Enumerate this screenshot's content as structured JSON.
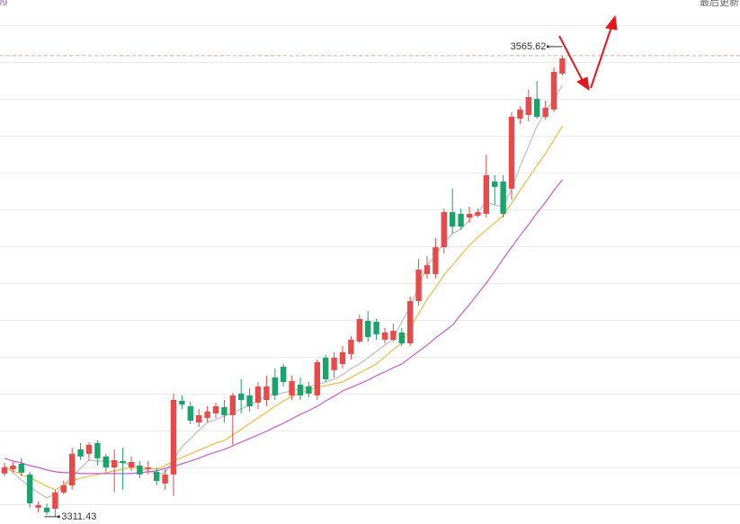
{
  "header": {
    "left": "09",
    "right": "最后更新"
  },
  "chart_data": {
    "type": "candlestick",
    "ylim": [
      3307.4,
      3596.3
    ],
    "up_color": "#e84a4a",
    "down_color": "#1aa36a",
    "open": [
      3335.2,
      3337.6,
      3340.6,
      3334.7,
      3316.4,
      3316.4,
      3315.8,
      3324.8,
      3328.7,
      3348.5,
      3346.1,
      3352.0,
      3344.6,
      3338.6,
      3342.1,
      3338.6,
      3339.6,
      3337.6,
      3336.2,
      3329.7,
      3334.7,
      3375.3,
      3372.3,
      3363.4,
      3365.9,
      3368.4,
      3371.8,
      3367.4,
      3379.3,
      3378.3,
      3374.3,
      3375.8,
      3388.2,
      3394.1,
      3378.3,
      3384.2,
      3383.2,
      3378.3,
      3399.1,
      3392.2,
      3395.6,
      3401.1,
      3408.0,
      3419.4,
      3418.9,
      3409.0,
      3409.0,
      3413.0,
      3407.0,
      3430.3,
      3445.2,
      3445.2,
      3460.0,
      3479.4,
      3478.4,
      3476.4,
      3477.4,
      3478.4,
      3496.2,
      3496.2,
      3492.2,
      3530.9,
      3532.9,
      3541.8,
      3531.9,
      3535.9,
      3555.7
    ],
    "high": [
      3341.1,
      3341.6,
      3343.6,
      3336.2,
      3319.8,
      3318.8,
      3326.3,
      3331.2,
      3349.5,
      3352.0,
      3352.5,
      3353.5,
      3346.1,
      3348.5,
      3349.5,
      3344.6,
      3342.1,
      3342.1,
      3338.6,
      3337.6,
      3379.3,
      3378.3,
      3374.8,
      3370.8,
      3372.3,
      3374.3,
      3375.8,
      3379.8,
      3387.2,
      3382.2,
      3385.7,
      3389.2,
      3393.1,
      3395.6,
      3389.2,
      3388.2,
      3385.7,
      3398.1,
      3400.6,
      3402.1,
      3405.5,
      3411.0,
      3422.9,
      3424.9,
      3420.4,
      3415.4,
      3417.9,
      3415.4,
      3432.8,
      3453.6,
      3455.1,
      3465.0,
      3481.3,
      3492.2,
      3481.3,
      3482.3,
      3481.3,
      3511.1,
      3499.7,
      3499.7,
      3534.4,
      3537.8,
      3546.8,
      3551.7,
      3540.8,
      3559.1,
      3565.62
    ],
    "low": [
      3333.7,
      3335.7,
      3333.7,
      3316.4,
      3313.9,
      3312.4,
      3311.43,
      3323.8,
      3326.3,
      3342.6,
      3342.6,
      3339.6,
      3336.2,
      3324.8,
      3326.3,
      3336.7,
      3332.7,
      3334.7,
      3328.7,
      3326.3,
      3322.8,
      3370.8,
      3362.4,
      3360.9,
      3363.4,
      3365.9,
      3363.4,
      3351.0,
      3368.4,
      3369.4,
      3370.8,
      3372.3,
      3375.8,
      3383.2,
      3375.8,
      3375.8,
      3377.3,
      3375.8,
      3385.7,
      3388.2,
      3393.1,
      3398.1,
      3407.0,
      3408.0,
      3409.0,
      3407.0,
      3408.0,
      3405.5,
      3405.5,
      3427.8,
      3442.7,
      3442.7,
      3456.6,
      3467.5,
      3469.5,
      3473.4,
      3476.4,
      3476.4,
      3483.3,
      3476.4,
      3486.3,
      3527.9,
      3529.4,
      3530.9,
      3530.4,
      3534.4,
      3554.7
    ],
    "close": [
      3338.6,
      3339.6,
      3335.7,
      3318.8,
      3317.8,
      3313.9,
      3324.8,
      3328.7,
      3346.1,
      3344.6,
      3351.0,
      3343.6,
      3338.6,
      3342.6,
      3341.1,
      3341.6,
      3334.7,
      3338.6,
      3331.2,
      3334.7,
      3375.8,
      3373.3,
      3364.4,
      3367.4,
      3369.4,
      3372.3,
      3367.4,
      3378.3,
      3375.8,
      3372.3,
      3383.2,
      3383.2,
      3378.3,
      3385.7,
      3386.2,
      3378.3,
      3379.3,
      3396.6,
      3387.2,
      3399.1,
      3402.1,
      3409.0,
      3420.4,
      3410.5,
      3412.0,
      3413.0,
      3413.9,
      3407.0,
      3430.3,
      3447.6,
      3450.1,
      3460.0,
      3479.4,
      3471.4,
      3471.4,
      3478.4,
      3479.4,
      3499.7,
      3493.2,
      3478.4,
      3531.9,
      3535.9,
      3542.8,
      3531.9,
      3536.9,
      3556.7,
      3564.1
    ],
    "lines": [
      {
        "color": "#bdbdbd",
        "values": [
          3339.6,
          3335.7,
          3331.7,
          3327.7,
          3324.8,
          3321.8,
          3323.8,
          3328.7,
          3333.7,
          3338.1,
          3342.6,
          3342.1,
          3342.1,
          3341.6,
          3341.1,
          3340.1,
          3338.6,
          3336.7,
          3334.7,
          3335.7,
          3343.1,
          3350.0,
          3354.5,
          3359.0,
          3363.4,
          3364.9,
          3366.9,
          3368.4,
          3370.9,
          3372.8,
          3375.3,
          3377.8,
          3378.8,
          3379.8,
          3380.8,
          3381.8,
          3383.2,
          3384.2,
          3385.7,
          3387.2,
          3389.7,
          3393.1,
          3395.6,
          3399.1,
          3402.6,
          3406.0,
          3409.5,
          3418.9,
          3426.8,
          3438.7,
          3450.1,
          3455.6,
          3462.5,
          3467.5,
          3470.0,
          3474.9,
          3479.4,
          3484.8,
          3483.3,
          3482.3,
          3491.8,
          3504.6,
          3515.5,
          3526.9,
          3534.4,
          3541.8,
          3549.2
        ]
      },
      {
        "color": "#f5b942",
        "values": [
          3338.6,
          3336.7,
          3334.7,
          3332.7,
          3330.7,
          3328.2,
          3326.3,
          3328.7,
          3331.2,
          3332.7,
          3333.7,
          3334.7,
          3335.7,
          3336.7,
          3337.6,
          3338.6,
          3338.1,
          3338.1,
          3337.6,
          3339.6,
          3342.1,
          3344.1,
          3346.1,
          3348.1,
          3350.0,
          3352.0,
          3353.5,
          3356.5,
          3359.5,
          3362.9,
          3365.9,
          3368.9,
          3372.3,
          3375.3,
          3377.8,
          3379.8,
          3381.3,
          3382.7,
          3383.7,
          3384.7,
          3385.7,
          3388.2,
          3390.7,
          3393.1,
          3395.6,
          3399.6,
          3403.5,
          3407.0,
          3415.4,
          3423.4,
          3431.3,
          3437.7,
          3444.7,
          3450.1,
          3455.6,
          3461.0,
          3465.5,
          3469.5,
          3473.4,
          3477.4,
          3484.3,
          3491.3,
          3498.2,
          3505.1,
          3511.6,
          3519.0,
          3526.9
        ]
      },
      {
        "color": "#c55ccc",
        "values": [
          3343.6,
          3342.1,
          3341.1,
          3339.6,
          3338.6,
          3337.2,
          3336.2,
          3335.7,
          3335.7,
          3335.2,
          3335.2,
          3335.2,
          3335.2,
          3335.2,
          3335.2,
          3335.2,
          3335.7,
          3336.2,
          3336.7,
          3338.1,
          3339.1,
          3340.6,
          3342.1,
          3343.6,
          3345.6,
          3347.1,
          3348.5,
          3350.5,
          3352.5,
          3354.5,
          3356.5,
          3358.5,
          3360.9,
          3362.9,
          3365.4,
          3367.9,
          3369.9,
          3372.3,
          3375.3,
          3377.8,
          3380.8,
          3382.7,
          3384.7,
          3386.7,
          3389.2,
          3391.2,
          3393.6,
          3395.6,
          3399.1,
          3402.6,
          3406.0,
          3410.0,
          3413.5,
          3417.0,
          3422.9,
          3428.3,
          3434.3,
          3440.2,
          3446.7,
          3453.6,
          3460.0,
          3466.5,
          3472.4,
          3478.9,
          3484.8,
          3491.3,
          3497.2
        ]
      }
    ]
  }
}
